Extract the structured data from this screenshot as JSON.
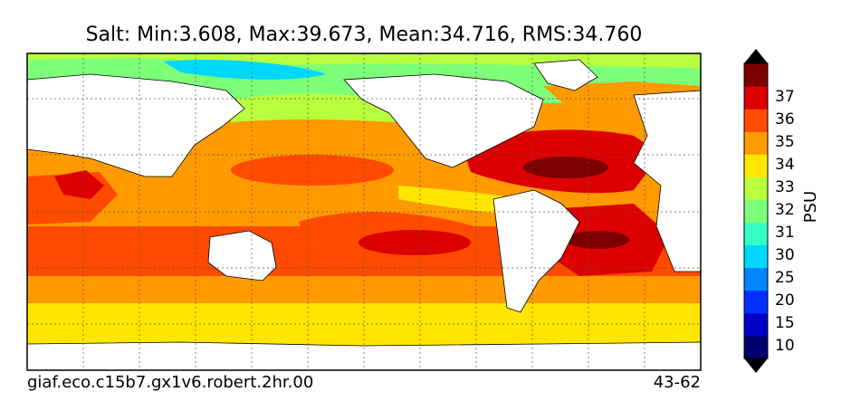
{
  "title": "Salt: Min:3.608, Max:39.673, Mean:34.716, RMS:34.760",
  "footer": {
    "left": "giaf.eco.c15b7.gx1v6.robert.2hr.00",
    "right": "43-62"
  },
  "colorbar": {
    "label": "PSU",
    "levels": [
      {
        "tick": "10",
        "color": "#00006d"
      },
      {
        "tick": "15",
        "color": "#0000c8"
      },
      {
        "tick": "20",
        "color": "#0030ff"
      },
      {
        "tick": "25",
        "color": "#0085ff"
      },
      {
        "tick": "30",
        "color": "#00d8ff"
      },
      {
        "tick": "31",
        "color": "#33ffc3"
      },
      {
        "tick": "32",
        "color": "#7dff7a"
      },
      {
        "tick": "33",
        "color": "#b8ff3e"
      },
      {
        "tick": "34",
        "color": "#ffe600"
      },
      {
        "tick": "35",
        "color": "#ff9a00"
      },
      {
        "tick": "36",
        "color": "#ff4b00"
      },
      {
        "tick": "37",
        "color": "#dc0000"
      },
      {
        "tick": "",
        "color": "#7d0000"
      }
    ]
  },
  "colors": {
    "land": "#ffffff",
    "coast": "#000000",
    "grid": "#555555"
  }
}
